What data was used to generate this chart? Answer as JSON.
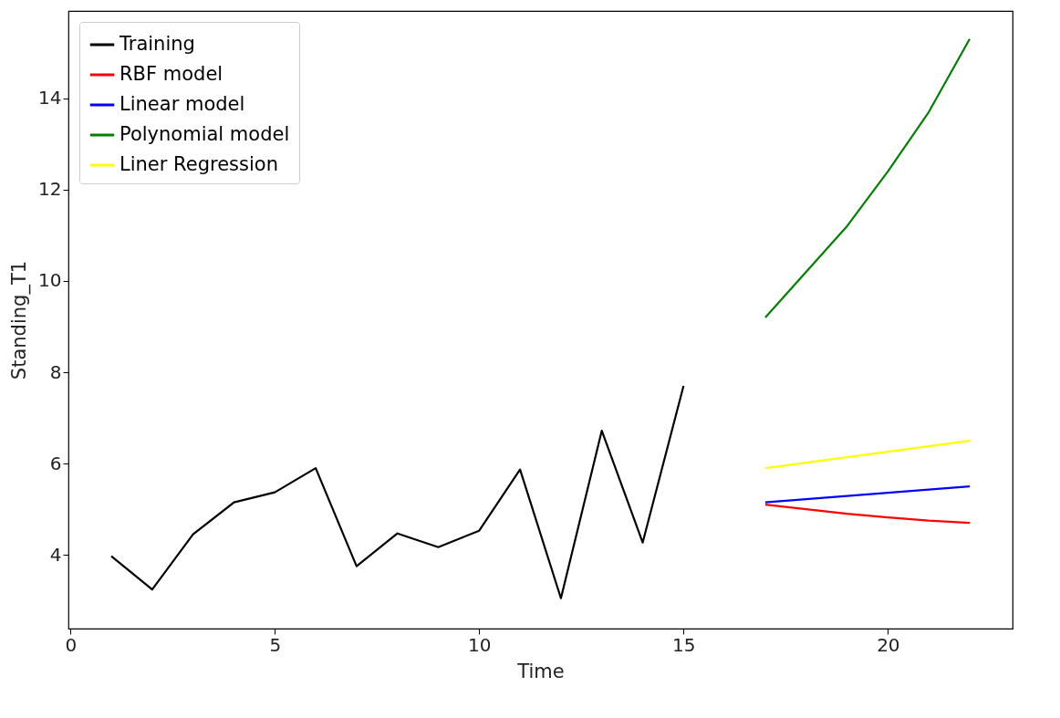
{
  "chart_data": {
    "type": "line",
    "xlabel": "Time",
    "ylabel": "Standing_T1",
    "xlim": [
      -0.05,
      23.05
    ],
    "ylim": [
      2.385,
      15.915
    ],
    "xticks": [
      0,
      5,
      10,
      15,
      20
    ],
    "yticks": [
      4,
      6,
      8,
      10,
      12,
      14
    ],
    "grid": false,
    "legend": "top left",
    "marker": "none",
    "line_style": "solid",
    "series": [
      {
        "name": "Training",
        "color": "#000000",
        "x": [
          1,
          2,
          3,
          4,
          5,
          6,
          7,
          8,
          9,
          10,
          11,
          12,
          13,
          14,
          15
        ],
        "values": [
          3.97,
          3.24,
          4.45,
          5.15,
          5.37,
          5.9,
          3.75,
          4.47,
          4.17,
          4.53,
          5.87,
          3.05,
          6.72,
          4.27,
          7.7
        ]
      },
      {
        "name": "RBF model",
        "color": "#ff0000",
        "x": [
          17,
          18,
          19,
          20,
          21,
          22
        ],
        "values": [
          5.1,
          5.0,
          4.9,
          4.82,
          4.75,
          4.7
        ]
      },
      {
        "name": "Linear model",
        "color": "#0000ff",
        "x": [
          17,
          18,
          19,
          20,
          21,
          22
        ],
        "values": [
          5.15,
          5.22,
          5.29,
          5.36,
          5.43,
          5.5
        ]
      },
      {
        "name": "Polynomial model",
        "color": "#008000",
        "x": [
          17,
          18,
          19,
          20,
          21,
          22
        ],
        "values": [
          9.2,
          10.2,
          11.2,
          12.4,
          13.7,
          15.3
        ]
      },
      {
        "name": "Liner Regression",
        "color": "#ffff00",
        "x": [
          17,
          18,
          19,
          20,
          21,
          22
        ],
        "values": [
          5.9,
          6.02,
          6.14,
          6.26,
          6.38,
          6.5
        ]
      }
    ]
  }
}
